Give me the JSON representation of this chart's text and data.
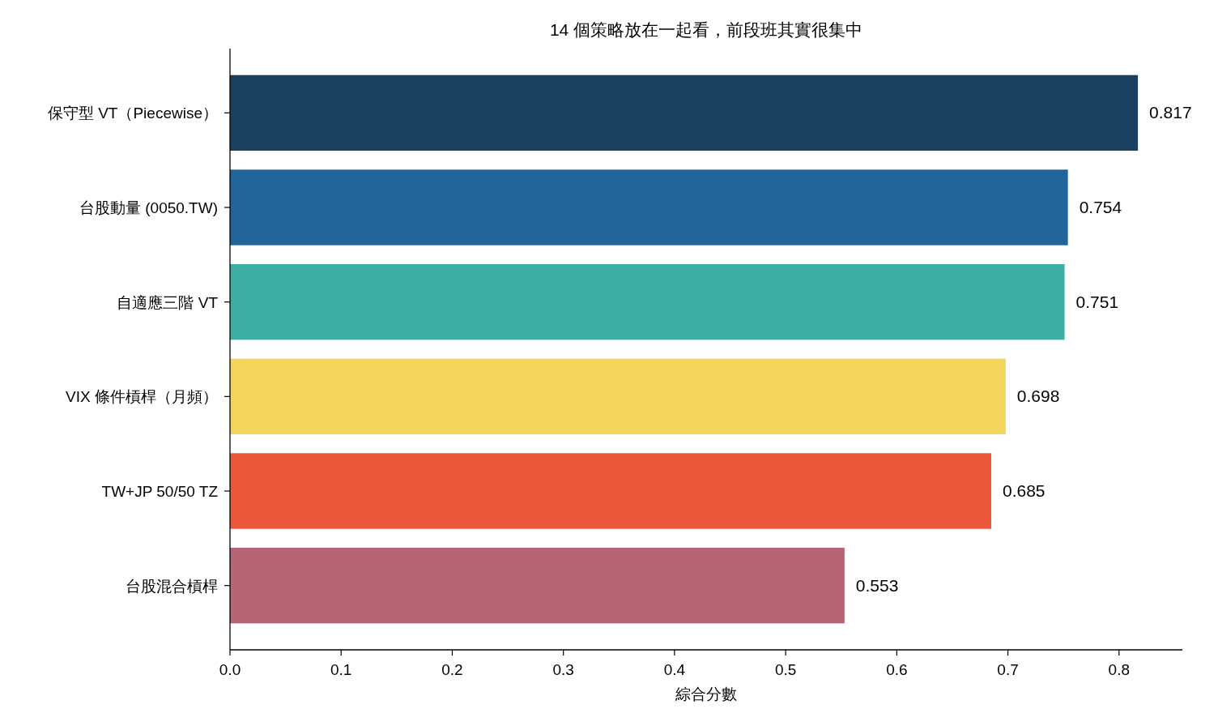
{
  "chart_data": {
    "type": "bar",
    "orientation": "horizontal",
    "title": "14 個策略放在一起看，前段班其實很集中",
    "xlabel": "綜合分數",
    "categories": [
      "保守型 VT（Piecewise）",
      "台股動量 (0050.TW)",
      "自適應三階 VT",
      "VIX 條件槓桿（月頻）",
      "TW+JP 50/50 TZ",
      "台股混合槓桿"
    ],
    "values": [
      0.817,
      0.754,
      0.751,
      0.698,
      0.685,
      0.553
    ],
    "colors": [
      "#1a3f5f",
      "#21649a",
      "#3daea4",
      "#f3d55e",
      "#eb573b",
      "#b56576"
    ],
    "xlim": [
      0,
      0.857
    ],
    "xticks": [
      {
        "value": 0,
        "label": "0.0"
      },
      0.1,
      0.2,
      0.3,
      0.4,
      0.5,
      0.6,
      0.7,
      0.8
    ],
    "data_labels": true
  }
}
